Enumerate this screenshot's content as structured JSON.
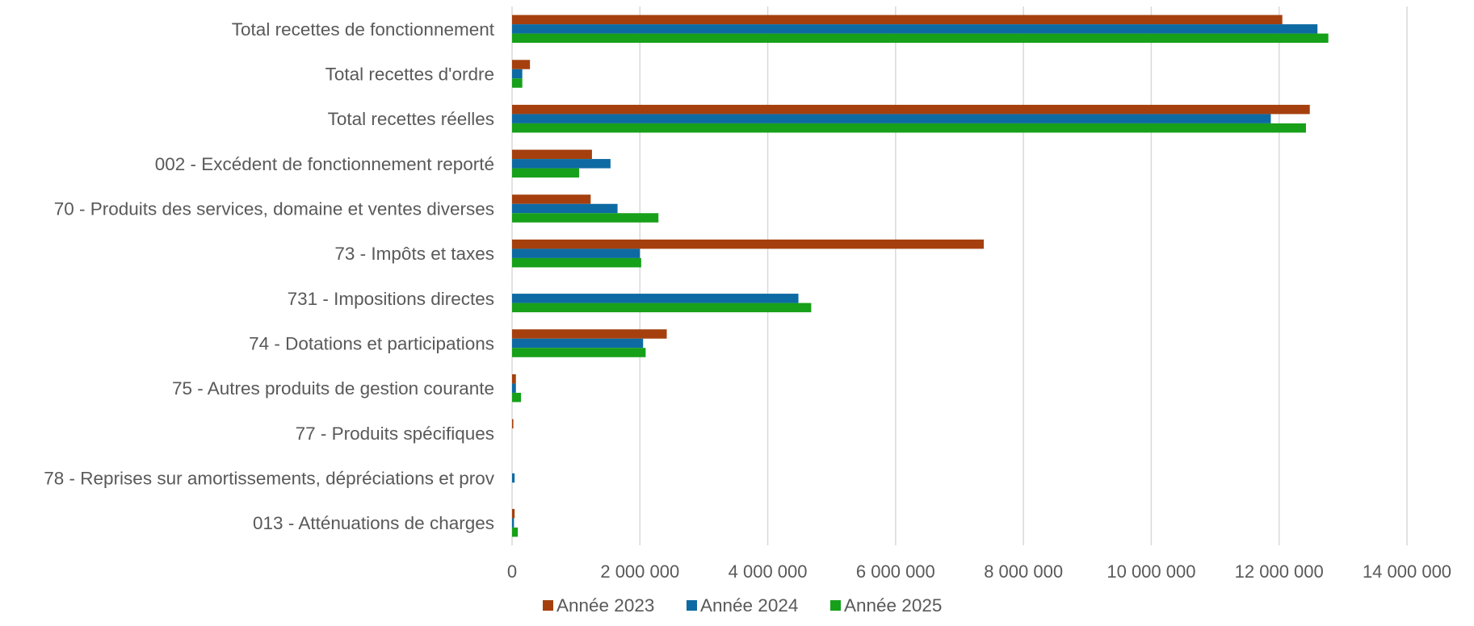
{
  "chart_data": {
    "type": "bar",
    "orientation": "horizontal",
    "title": "",
    "xlabel": "",
    "ylabel": "",
    "xlim": [
      0,
      14000000
    ],
    "x_ticks": [
      0,
      2000000,
      4000000,
      6000000,
      8000000,
      10000000,
      12000000,
      14000000
    ],
    "x_tick_labels": [
      "0",
      "2 000 000",
      "4 000 000",
      "6 000 000",
      "8 000 000",
      "10 000 000",
      "12 000 000",
      "14 000 000"
    ],
    "grid": "vertical",
    "legend_position": "bottom",
    "categories": [
      "Total recettes de fonctionnement",
      "Total recettes d'ordre",
      "Total recettes réelles",
      "002 - Excédent de fonctionnement reporté",
      "70 - Produits des services, domaine et ventes diverses",
      "73 - Impôts et taxes",
      "731 - Impositions directes",
      "74 - Dotations et participations",
      "75 - Autres produits de gestion courante",
      "77 - Produits spécifiques",
      "78 - Reprises sur amortissements, dépréciations et prov",
      "013 - Atténuations de charges"
    ],
    "series": [
      {
        "name": "Année 2023",
        "color": "#A5400E",
        "values": [
          12050000,
          280000,
          12480000,
          1250000,
          1230000,
          7380000,
          0,
          2420000,
          60000,
          20000,
          0,
          40000
        ]
      },
      {
        "name": "Année 2024",
        "color": "#0E6AA3",
        "values": [
          12600000,
          160000,
          11870000,
          1540000,
          1650000,
          2000000,
          4480000,
          2050000,
          60000,
          0,
          40000,
          30000
        ]
      },
      {
        "name": "Année 2025",
        "color": "#17A01A",
        "values": [
          12770000,
          160000,
          12420000,
          1050000,
          2290000,
          2020000,
          4680000,
          2090000,
          140000,
          0,
          0,
          90000
        ]
      }
    ]
  }
}
